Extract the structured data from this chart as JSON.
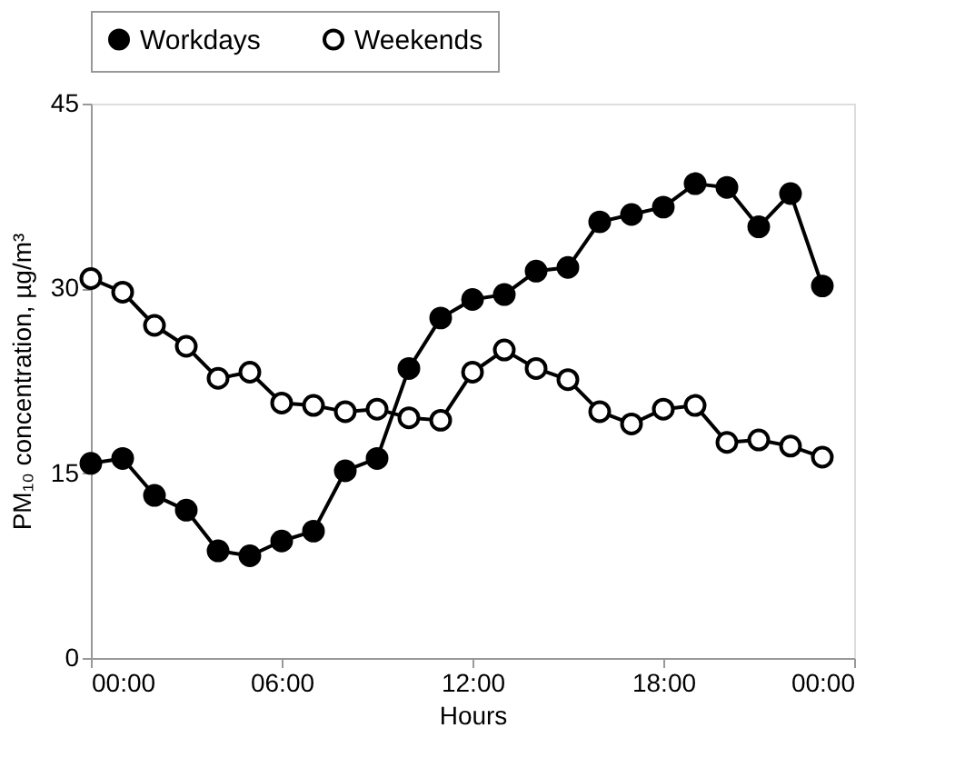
{
  "chart_data": {
    "type": "line",
    "xlabel": "Hours",
    "ylabel": "PM₁₀ concentration, µg/m³",
    "x": [
      0,
      1,
      2,
      3,
      4,
      5,
      6,
      7,
      8,
      9,
      10,
      11,
      12,
      13,
      14,
      15,
      16,
      17,
      18,
      19,
      20,
      21,
      22,
      23
    ],
    "series": [
      {
        "name": "Workdays",
        "color": "#000000",
        "values": [
          15.8,
          16.2,
          13.2,
          12.0,
          8.7,
          8.3,
          9.5,
          10.3,
          15.2,
          16.2,
          23.5,
          27.6,
          29.1,
          29.5,
          31.4,
          31.7,
          35.4,
          36.0,
          36.6,
          38.5,
          38.2,
          35.0,
          37.7,
          30.2
        ]
      },
      {
        "name": "Weekends",
        "color": "#000000",
        "values": [
          30.8,
          29.7,
          27.0,
          25.3,
          22.7,
          23.2,
          20.7,
          20.5,
          20.0,
          20.2,
          19.5,
          19.3,
          23.2,
          25.0,
          23.5,
          22.6,
          20.0,
          19.0,
          20.2,
          20.5,
          17.5,
          17.7,
          17.2,
          16.3
        ]
      }
    ],
    "xlim": [
      0,
      24
    ],
    "xticks": [
      {
        "value": 0,
        "label": "00:00"
      },
      {
        "value": 6,
        "label": "06:00"
      },
      {
        "value": 12,
        "label": "12:00"
      },
      {
        "value": 18,
        "label": "18:00"
      },
      {
        "value": 24,
        "label": "00:00"
      }
    ],
    "ylim": [
      0,
      45
    ],
    "yticks": [
      0,
      15,
      30,
      45
    ],
    "grid": false,
    "legend": "top",
    "marker": "circle",
    "line_style": "solid"
  }
}
